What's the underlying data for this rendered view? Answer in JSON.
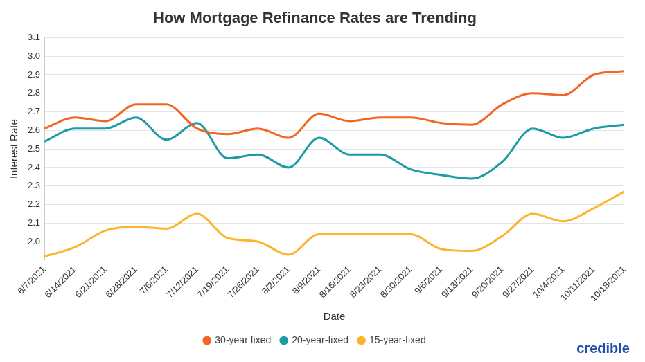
{
  "chart_data": {
    "type": "line",
    "title": "How Mortgage Refinance Rates are Trending",
    "x_label": "Date",
    "y_label": "Interest Rate",
    "annotation": "credible",
    "categories": [
      "6/7/2021",
      "6/14/2021",
      "6/21/2021",
      "6/28/2021",
      "7/6/2021",
      "7/12/2021",
      "7/19/2021",
      "7/26/2021",
      "8/2/2021",
      "8/9/2021",
      "8/16/2021",
      "8/23/2021",
      "8/30/2021",
      "9/6/2021",
      "9/13/2021",
      "9/20/2021",
      "9/27/2021",
      "10/4/2021",
      "10/11/2021",
      "10/18/2021"
    ],
    "series": [
      {
        "name": "30-year fixed",
        "color": "#f26522",
        "marker": "none",
        "line_style": "solid",
        "values": [
          2.61,
          2.67,
          2.65,
          2.74,
          2.74,
          2.61,
          2.58,
          2.61,
          2.56,
          2.69,
          2.65,
          2.67,
          2.67,
          2.64,
          2.63,
          2.74,
          2.8,
          2.79,
          2.9,
          2.92
        ]
      },
      {
        "name": "20-year-fixed",
        "color": "#1c9aa6",
        "marker": "none",
        "line_style": "solid",
        "values": [
          2.54,
          2.61,
          2.61,
          2.67,
          2.55,
          2.64,
          2.45,
          2.47,
          2.4,
          2.56,
          2.47,
          2.47,
          2.39,
          2.36,
          2.34,
          2.43,
          2.61,
          2.56,
          2.61,
          2.63
        ]
      },
      {
        "name": "15-year-fixed",
        "color": "#fdb42b",
        "marker": "none",
        "line_style": "solid",
        "values": [
          1.92,
          1.97,
          2.06,
          2.08,
          2.07,
          2.15,
          2.02,
          2.0,
          1.93,
          2.04,
          2.04,
          2.04,
          2.04,
          1.96,
          1.95,
          2.03,
          2.15,
          2.11,
          2.18,
          2.27
        ]
      }
    ],
    "ylim": [
      1.9,
      3.1
    ],
    "yticks": [
      {
        "value": 2,
        "label": "2.0"
      },
      2.1,
      2.2,
      2.3,
      2.4,
      2.5,
      2.6,
      2.7,
      2.8,
      2.9,
      {
        "value": 3,
        "label": "3.0"
      },
      3.1
    ],
    "grid": true,
    "legend": "bottom"
  }
}
